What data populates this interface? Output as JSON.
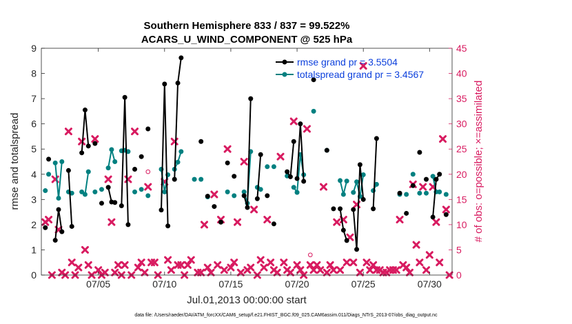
{
  "chart_data": {
    "type": "line",
    "title": "Southern Hemisphere 833 / 837 = 99.522%",
    "subtitle": "ACARS_U_WIND_COMPONENT @ 525 hPa",
    "xlabel": "Jul.01,2013 00:00:00 start",
    "ylabel": "rmse and totalspread",
    "y2label": "# of obs: o=possible; ×=assimilated",
    "footnote": "data file: /Users/raeder/DAI/ATM_forcXX/CAM6_setup/f.e21.FHIST_BGC.f09_025.CAM6assim.011/Diags_NTrS_2013-07/obs_diag_output.nc",
    "xlim": [
      0.7,
      31.7
    ],
    "ylim": [
      0,
      9
    ],
    "y2lim": [
      0,
      45
    ],
    "xticks": [
      5,
      10,
      15,
      20,
      25,
      30
    ],
    "xtick_labels": [
      "07/05",
      "07/10",
      "07/15",
      "07/20",
      "07/25",
      "07/30"
    ],
    "yticks": [
      0,
      1,
      2,
      3,
      4,
      5,
      6,
      7,
      8,
      9
    ],
    "y2ticks": [
      0,
      5,
      10,
      15,
      20,
      25,
      30,
      35,
      40,
      45
    ],
    "legend": {
      "position": "top-right",
      "entries": [
        "rmse grand pr = 3.5504",
        "totalspread grand pr = 3.4567"
      ]
    },
    "colors": {
      "rmse": "#000000",
      "spread": "#008080",
      "obs": "#d81b60",
      "legend_text": "#0b3fdc"
    },
    "series": [
      {
        "name": "rmse",
        "segments": [
          [
            [
              1.0,
              1.88
            ]
          ],
          [
            [
              1.25,
              4.6
            ]
          ],
          [
            [
              1.75,
              1.38
            ],
            [
              2.0,
              2.6
            ],
            [
              2.25,
              1.72
            ]
          ],
          [
            [
              2.75,
              4.15
            ],
            [
              3.0,
              1.93
            ]
          ],
          [
            [
              3.75,
              4.85
            ],
            [
              4.0,
              6.55
            ],
            [
              4.25,
              5.12
            ]
          ],
          [
            [
              4.75,
              5.22
            ]
          ],
          [
            [
              5.25,
              2.85
            ]
          ],
          [
            [
              5.75,
              3.48
            ],
            [
              6.0,
              2.9
            ],
            [
              6.25,
              2.88
            ]
          ],
          [
            [
              6.75,
              2.75
            ],
            [
              7.0,
              7.05
            ],
            [
              7.25,
              2.0
            ]
          ],
          [
            [
              7.75,
              4.2
            ]
          ],
          [
            [
              8.25,
              4.7
            ]
          ],
          [
            [
              8.75,
              5.8
            ]
          ],
          [
            [
              9.75,
              2.58
            ],
            [
              10.0,
              7.58
            ],
            [
              10.25,
              1.95
            ]
          ],
          [
            [
              10.75,
              3.8
            ],
            [
              11.0,
              7.62
            ],
            [
              11.25,
              8.62
            ]
          ],
          [
            [
              12.75,
              5.3
            ]
          ],
          [
            [
              13.25,
              3.13
            ]
          ],
          [
            [
              13.75,
              2.72
            ]
          ],
          [
            [
              14.25,
              2.1
            ]
          ],
          [
            [
              14.75,
              4.45
            ]
          ],
          [
            [
              15.25,
              3.92
            ]
          ],
          [
            [
              16.0,
              3.15
            ],
            [
              16.25,
              2.68
            ],
            [
              16.5,
              7.0
            ]
          ],
          [
            [
              17.0,
              3.03
            ],
            [
              17.25,
              4.78
            ]
          ],
          [
            [
              17.75,
              3.15
            ]
          ],
          [
            [
              18.25,
              2.03
            ]
          ],
          [
            [
              19.25,
              4.1
            ],
            [
              19.5,
              3.9
            ],
            [
              19.75,
              5.3
            ]
          ],
          [
            [
              20.0,
              3.83
            ],
            [
              20.25,
              6.0
            ],
            [
              20.5,
              3.72
            ]
          ],
          [
            [
              21.25,
              7.75
            ]
          ],
          [
            [
              22.25,
              4.95
            ]
          ],
          [
            [
              22.75,
              2.63
            ]
          ],
          [
            [
              23.25,
              2.63
            ],
            [
              23.5,
              1.78
            ],
            [
              23.75,
              1.37
            ]
          ],
          [
            [
              24.25,
              2.6
            ],
            [
              24.5,
              1.02
            ],
            [
              24.75,
              4.38
            ],
            [
              25.0,
              3.0
            ]
          ],
          [
            [
              25.75,
              2.63
            ],
            [
              26.0,
              5.42
            ]
          ],
          [
            [
              27.75,
              3.25
            ]
          ],
          [
            [
              28.25,
              2.45
            ]
          ],
          [
            [
              28.75,
              3.55
            ]
          ],
          [
            [
              29.25,
              4.87
            ]
          ],
          [
            [
              29.75,
              3.8
            ]
          ],
          [
            [
              30.25,
              2.3
            ],
            [
              30.5,
              3.8
            ],
            [
              30.75,
              4.0
            ]
          ],
          [
            [
              31.25,
              2.4
            ]
          ]
        ]
      },
      {
        "name": "totalspread",
        "segments": [
          [
            [
              1.0,
              3.35
            ]
          ],
          [
            [
              1.25,
              4.0
            ]
          ],
          [
            [
              1.75,
              4.45
            ],
            [
              2.0,
              3.05
            ],
            [
              2.25,
              4.5
            ]
          ],
          [
            [
              2.75,
              3.3
            ],
            [
              3.0,
              3.25
            ]
          ],
          [
            [
              3.75,
              3.3
            ],
            [
              4.0,
              3.2
            ],
            [
              4.25,
              4.1
            ]
          ],
          [
            [
              4.75,
              3.3
            ]
          ],
          [
            [
              5.25,
              3.4
            ]
          ],
          [
            [
              5.75,
              4.25
            ],
            [
              6.0,
              4.98
            ],
            [
              6.25,
              4.5
            ]
          ],
          [
            [
              6.75,
              4.93
            ],
            [
              7.0,
              4.95
            ],
            [
              7.25,
              4.9
            ]
          ],
          [
            [
              7.75,
              3.3
            ]
          ],
          [
            [
              8.25,
              3.4
            ]
          ],
          [
            [
              8.75,
              3.15
            ]
          ],
          [
            [
              9.75,
              4.2
            ],
            [
              10.0,
              3.3
            ],
            [
              10.25,
              3.98
            ]
          ],
          [
            [
              10.75,
              4.2
            ],
            [
              11.0,
              4.48
            ],
            [
              11.25,
              4.9
            ]
          ],
          [
            [
              12.25,
              3.8
            ]
          ],
          [
            [
              12.75,
              3.8
            ]
          ],
          [
            [
              13.25,
              3.1
            ]
          ],
          [
            [
              14.75,
              3.3
            ]
          ],
          [
            [
              15.25,
              3.15
            ]
          ],
          [
            [
              16.0,
              3.3
            ],
            [
              16.25,
              2.85
            ],
            [
              16.5,
              4.9
            ]
          ],
          [
            [
              17.0,
              3.48
            ],
            [
              17.25,
              3.4
            ]
          ],
          [
            [
              17.75,
              4.3
            ]
          ],
          [
            [
              18.25,
              4.3
            ]
          ],
          [
            [
              19.25,
              3.93
            ]
          ],
          [
            [
              19.75,
              3.48
            ],
            [
              20.0,
              3.28
            ],
            [
              20.25,
              4.78
            ],
            [
              20.5,
              3.98
            ]
          ],
          [
            [
              21.25,
              6.5
            ]
          ],
          [
            [
              22.25,
              4.95
            ]
          ],
          [
            [
              23.25,
              3.75
            ],
            [
              23.5,
              3.2
            ],
            [
              23.75,
              3.73
            ]
          ],
          [
            [
              24.25,
              3.28
            ],
            [
              24.5,
              3.7
            ],
            [
              24.75,
              3.12
            ],
            [
              25.0,
              3.98
            ]
          ],
          [
            [
              25.75,
              3.35
            ],
            [
              26.0,
              3.6
            ]
          ],
          [
            [
              27.75,
              3.2
            ]
          ],
          [
            [
              28.25,
              3.2
            ]
          ],
          [
            [
              28.75,
              4.0
            ]
          ],
          [
            [
              29.25,
              3.25
            ]
          ],
          [
            [
              29.75,
              3.25
            ]
          ],
          [
            [
              30.25,
              3.92
            ],
            [
              30.5,
              3.3
            ],
            [
              30.75,
              3.3
            ]
          ],
          [
            [
              31.25,
              3.2
            ]
          ]
        ]
      }
    ],
    "obs_assimilated": [
      [
        1.0,
        10.5
      ],
      [
        1.25,
        11.0
      ],
      [
        1.5,
        0.0
      ],
      [
        1.75,
        19.0
      ],
      [
        2.0,
        9.0
      ],
      [
        2.25,
        0.5
      ],
      [
        2.5,
        0.0
      ],
      [
        2.75,
        28.5
      ],
      [
        3.0,
        2.5
      ],
      [
        3.25,
        0.0
      ],
      [
        3.5,
        1.5
      ],
      [
        3.75,
        26.5
      ],
      [
        4.0,
        5.0
      ],
      [
        4.25,
        2.0
      ],
      [
        4.5,
        0.0
      ],
      [
        4.75,
        27.0
      ],
      [
        5.0,
        1.0
      ],
      [
        5.25,
        0.0
      ],
      [
        5.5,
        0.5
      ],
      [
        5.75,
        19.0
      ],
      [
        6.0,
        10.5
      ],
      [
        6.25,
        0.5
      ],
      [
        6.5,
        2.0
      ],
      [
        6.75,
        0.0
      ],
      [
        7.0,
        2.0
      ],
      [
        7.25,
        19.0
      ],
      [
        7.5,
        0.0
      ],
      [
        7.75,
        28.5
      ],
      [
        8.0,
        1.5
      ],
      [
        8.25,
        2.5
      ],
      [
        8.5,
        0.5
      ],
      [
        8.75,
        17.5
      ],
      [
        9.0,
        2.5
      ],
      [
        9.25,
        2.5
      ],
      [
        9.5,
        0.0
      ],
      [
        10.0,
        18.5
      ],
      [
        10.25,
        3.0
      ],
      [
        10.5,
        1.0
      ],
      [
        10.75,
        26.5
      ],
      [
        11.0,
        2.0
      ],
      [
        11.25,
        2.0
      ],
      [
        11.5,
        0.0
      ],
      [
        11.75,
        2.0
      ],
      [
        12.0,
        3.0
      ],
      [
        12.5,
        0.5
      ],
      [
        12.75,
        0.5
      ],
      [
        13.0,
        10.0
      ],
      [
        13.25,
        1.5
      ],
      [
        13.5,
        0.5
      ],
      [
        13.75,
        16.0
      ],
      [
        14.0,
        2.0
      ],
      [
        14.25,
        11.0
      ],
      [
        14.5,
        1.0
      ],
      [
        14.75,
        25.0
      ],
      [
        15.0,
        1.5
      ],
      [
        15.25,
        2.5
      ],
      [
        15.5,
        10.5
      ],
      [
        15.75,
        0.5
      ],
      [
        16.0,
        22.5
      ],
      [
        16.25,
        1.0
      ],
      [
        16.5,
        1.5
      ],
      [
        16.75,
        13.0
      ],
      [
        17.0,
        0.0
      ],
      [
        17.25,
        3.0
      ],
      [
        17.5,
        1.5
      ],
      [
        17.75,
        11.0
      ],
      [
        18.0,
        2.5
      ],
      [
        18.25,
        1.0
      ],
      [
        18.5,
        0.5
      ],
      [
        18.75,
        23.5
      ],
      [
        19.0,
        2.5
      ],
      [
        19.25,
        1.0
      ],
      [
        19.5,
        0.5
      ],
      [
        19.75,
        30.5
      ],
      [
        20.0,
        2.0
      ],
      [
        20.25,
        1.0
      ],
      [
        20.5,
        0.0
      ],
      [
        20.75,
        29.0
      ],
      [
        21.0,
        2.0
      ],
      [
        21.25,
        1.0
      ],
      [
        21.5,
        2.0
      ],
      [
        21.75,
        1.0
      ],
      [
        22.0,
        17.5
      ],
      [
        22.25,
        0.5
      ],
      [
        22.5,
        2.0
      ],
      [
        22.75,
        1.0
      ],
      [
        23.0,
        10.5
      ],
      [
        23.25,
        1.0
      ],
      [
        23.5,
        11.0
      ],
      [
        23.75,
        2.5
      ],
      [
        24.0,
        7.5
      ],
      [
        24.25,
        2.5
      ],
      [
        24.5,
        14.0
      ],
      [
        24.75,
        0.5
      ],
      [
        25.0,
        41.5
      ],
      [
        25.25,
        2.5
      ],
      [
        25.5,
        1.0
      ],
      [
        25.75,
        2.0
      ],
      [
        26.0,
        1.0
      ],
      [
        26.25,
        1.0
      ],
      [
        26.5,
        0.5
      ],
      [
        26.75,
        0.5
      ],
      [
        27.0,
        1.0
      ],
      [
        27.25,
        1.0
      ],
      [
        27.5,
        1.0
      ],
      [
        27.75,
        11.0
      ],
      [
        28.0,
        2.0
      ],
      [
        28.25,
        1.5
      ],
      [
        28.5,
        0.5
      ],
      [
        28.75,
        18.0
      ],
      [
        29.0,
        6.0
      ],
      [
        29.25,
        2.5
      ],
      [
        29.5,
        17.5
      ],
      [
        29.75,
        1.0
      ],
      [
        30.0,
        4.0
      ],
      [
        30.25,
        17.5
      ],
      [
        30.5,
        10.5
      ],
      [
        30.75,
        2.5
      ],
      [
        31.0,
        27.0
      ],
      [
        31.25,
        13.0
      ],
      [
        31.5,
        0.0
      ]
    ],
    "obs_possible": [
      [
        8.75,
        20.5
      ],
      [
        21.0,
        4.0
      ]
    ]
  }
}
